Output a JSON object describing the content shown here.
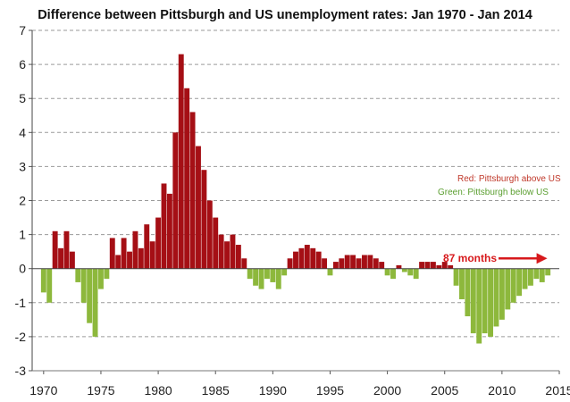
{
  "chart_data": {
    "type": "bar",
    "title": "Difference between Pittsburgh and US unemployment rates: Jan 1970  - Jan 2014",
    "xlabel": "",
    "ylabel": "",
    "xlim": [
      1969,
      2015
    ],
    "ylim": [
      -3,
      7
    ],
    "x_ticks": [
      "1970",
      "1975",
      "1980",
      "1985",
      "1990",
      "1995",
      "2000",
      "2005",
      "2010",
      "2015"
    ],
    "y_ticks": [
      "-3",
      "-2",
      "-1",
      "0",
      "1",
      "2",
      "3",
      "4",
      "5",
      "6",
      "7"
    ],
    "grid": "horizontal dashed",
    "colors": {
      "above": "#a50f15",
      "below": "#8db83c",
      "annotation": "#d7191c"
    },
    "legend": {
      "placement": "right",
      "entries": [
        {
          "label": "Red:      Pittsburgh above US",
          "color": "#c0392b"
        },
        {
          "label": "Green:  Pittsburgh below US",
          "color": "#5a9e2f"
        }
      ]
    },
    "annotation": {
      "text": "87 months",
      "from": 2006.5,
      "to": 2013.8,
      "y": 0.3
    },
    "series": [
      {
        "name": "Difference",
        "x": [
          1970.0,
          1970.5,
          1971.0,
          1971.5,
          1972.0,
          1972.5,
          1973.0,
          1973.5,
          1974.0,
          1974.5,
          1975.0,
          1975.5,
          1976.0,
          1976.5,
          1977.0,
          1977.5,
          1978.0,
          1978.5,
          1979.0,
          1979.5,
          1980.0,
          1980.5,
          1981.0,
          1981.5,
          1982.0,
          1982.5,
          1983.0,
          1983.5,
          1984.0,
          1984.5,
          1985.0,
          1985.5,
          1986.0,
          1986.5,
          1987.0,
          1987.5,
          1988.0,
          1988.5,
          1989.0,
          1989.5,
          1990.0,
          1990.5,
          1991.0,
          1991.5,
          1992.0,
          1992.5,
          1993.0,
          1993.5,
          1994.0,
          1994.5,
          1995.0,
          1995.5,
          1996.0,
          1996.5,
          1997.0,
          1997.5,
          1998.0,
          1998.5,
          1999.0,
          1999.5,
          2000.0,
          2000.5,
          2001.0,
          2001.5,
          2002.0,
          2002.5,
          2003.0,
          2003.5,
          2004.0,
          2004.5,
          2005.0,
          2005.5,
          2006.0,
          2006.5,
          2007.0,
          2007.5,
          2008.0,
          2008.5,
          2009.0,
          2009.5,
          2010.0,
          2010.5,
          2011.0,
          2011.5,
          2012.0,
          2012.5,
          2013.0,
          2013.5,
          2014.0
        ],
        "values": [
          -0.7,
          -1.0,
          1.1,
          0.6,
          1.1,
          0.5,
          -0.4,
          -1.0,
          -1.6,
          -2.0,
          -0.6,
          -0.3,
          0.9,
          0.4,
          0.9,
          0.5,
          1.1,
          0.6,
          1.3,
          0.8,
          1.5,
          2.5,
          2.2,
          4.0,
          6.3,
          5.3,
          4.6,
          3.6,
          2.9,
          2.0,
          1.5,
          1.0,
          0.8,
          1.0,
          0.7,
          0.3,
          -0.3,
          -0.5,
          -0.6,
          -0.3,
          -0.4,
          -0.6,
          -0.2,
          0.3,
          0.5,
          0.6,
          0.7,
          0.6,
          0.5,
          0.3,
          -0.2,
          0.2,
          0.3,
          0.4,
          0.4,
          0.3,
          0.4,
          0.4,
          0.3,
          0.2,
          -0.2,
          -0.3,
          0.1,
          -0.1,
          -0.2,
          -0.3,
          0.2,
          0.2,
          0.2,
          0.1,
          0.2,
          0.1,
          -0.5,
          -0.9,
          -1.4,
          -1.9,
          -2.2,
          -1.9,
          -2.0,
          -1.7,
          -1.5,
          -1.2,
          -1.0,
          -0.8,
          -0.6,
          -0.5,
          -0.3,
          -0.4,
          -0.2
        ]
      }
    ]
  }
}
